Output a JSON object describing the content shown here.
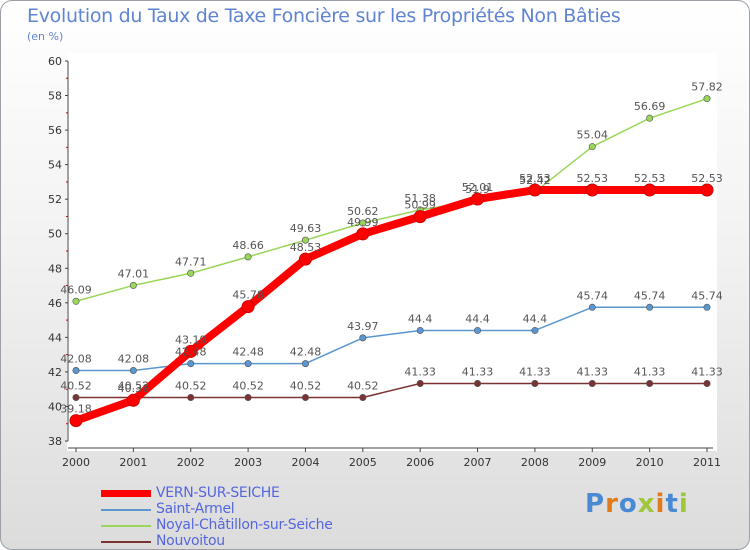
{
  "header": {
    "title": "Evolution du Taux de Taxe Foncière sur les Propriétés Non Bâties",
    "unit": "(en %)"
  },
  "logo": {
    "letters": [
      "P",
      "r",
      "o",
      "x",
      "i",
      "t",
      "i"
    ],
    "colors": [
      "#4a8ad4",
      "#e07b1a",
      "#4a8ad4",
      "#9fc73a",
      "#e07b1a",
      "#4a8ad4",
      "#9fc73a"
    ]
  },
  "chart_data": {
    "type": "line",
    "title": "Evolution du Taux de Taxe Foncière sur les Propriétés Non Bâties",
    "ylabel": "(en %)",
    "xlabel": "",
    "x": [
      "2000",
      "2001",
      "2002",
      "2003",
      "2004",
      "2005",
      "2006",
      "2007",
      "2008",
      "2009",
      "2010",
      "2011"
    ],
    "ylim": [
      38,
      60
    ],
    "yticks": [
      38,
      40,
      42,
      44,
      46,
      48,
      50,
      52,
      54,
      56,
      58,
      60
    ],
    "grid": false,
    "series": [
      {
        "name": "Nouvoitou",
        "color": "#7a3333",
        "emphasis": false,
        "values": [
          40.52,
          40.52,
          40.52,
          40.52,
          40.52,
          40.52,
          41.33,
          41.33,
          41.33,
          41.33,
          41.33,
          41.33
        ],
        "labels": [
          "40.52",
          "40.52",
          "40.52",
          "40.52",
          "40.52",
          "40.52",
          "41.33",
          "41.33",
          "41.33",
          "41.33",
          "41.33",
          "41.33"
        ]
      },
      {
        "name": "Saint-Armel",
        "color": "#5b96cf",
        "emphasis": false,
        "values": [
          42.08,
          42.08,
          42.48,
          42.48,
          42.48,
          43.97,
          44.4,
          44.4,
          44.4,
          45.74,
          45.74,
          45.74
        ],
        "labels": [
          "42.08",
          "42.08",
          "42.48",
          "42.48",
          "42.48",
          "43.97",
          "44.4",
          "44.4",
          "44.4",
          "45.74",
          "45.74",
          "45.74"
        ]
      },
      {
        "name": "Noyal-Châtillon-sur-Seiche",
        "color": "#9ad65a",
        "emphasis": false,
        "values": [
          46.09,
          47.01,
          47.71,
          48.66,
          49.63,
          50.62,
          51.38,
          51.9,
          52.42,
          55.04,
          56.69,
          57.82
        ],
        "labels": [
          "46.09",
          "47.01",
          "47.71",
          "48.66",
          "49.63",
          "50.62",
          "51.38",
          "51.9",
          "52.42",
          "55.04",
          "56.69",
          "57.82"
        ]
      },
      {
        "name": "VERN-SUR-SEICHE",
        "color": "#ff0000",
        "emphasis": true,
        "values": [
          39.18,
          40.36,
          43.19,
          45.78,
          48.53,
          49.99,
          50.99,
          52.01,
          52.53,
          52.53,
          52.53,
          52.53
        ],
        "labels": [
          "39.18",
          "40.36",
          "43.19",
          "45.78",
          "48.53",
          "49.99",
          "50.99",
          "52.01",
          "52.53",
          "52.53",
          "52.53",
          "52.53"
        ]
      }
    ],
    "legend": {
      "placement": "bottom-left",
      "order": [
        "VERN-SUR-SEICHE",
        "Saint-Armel",
        "Noyal-Châtillon-sur-Seiche",
        "Nouvoitou"
      ]
    }
  }
}
